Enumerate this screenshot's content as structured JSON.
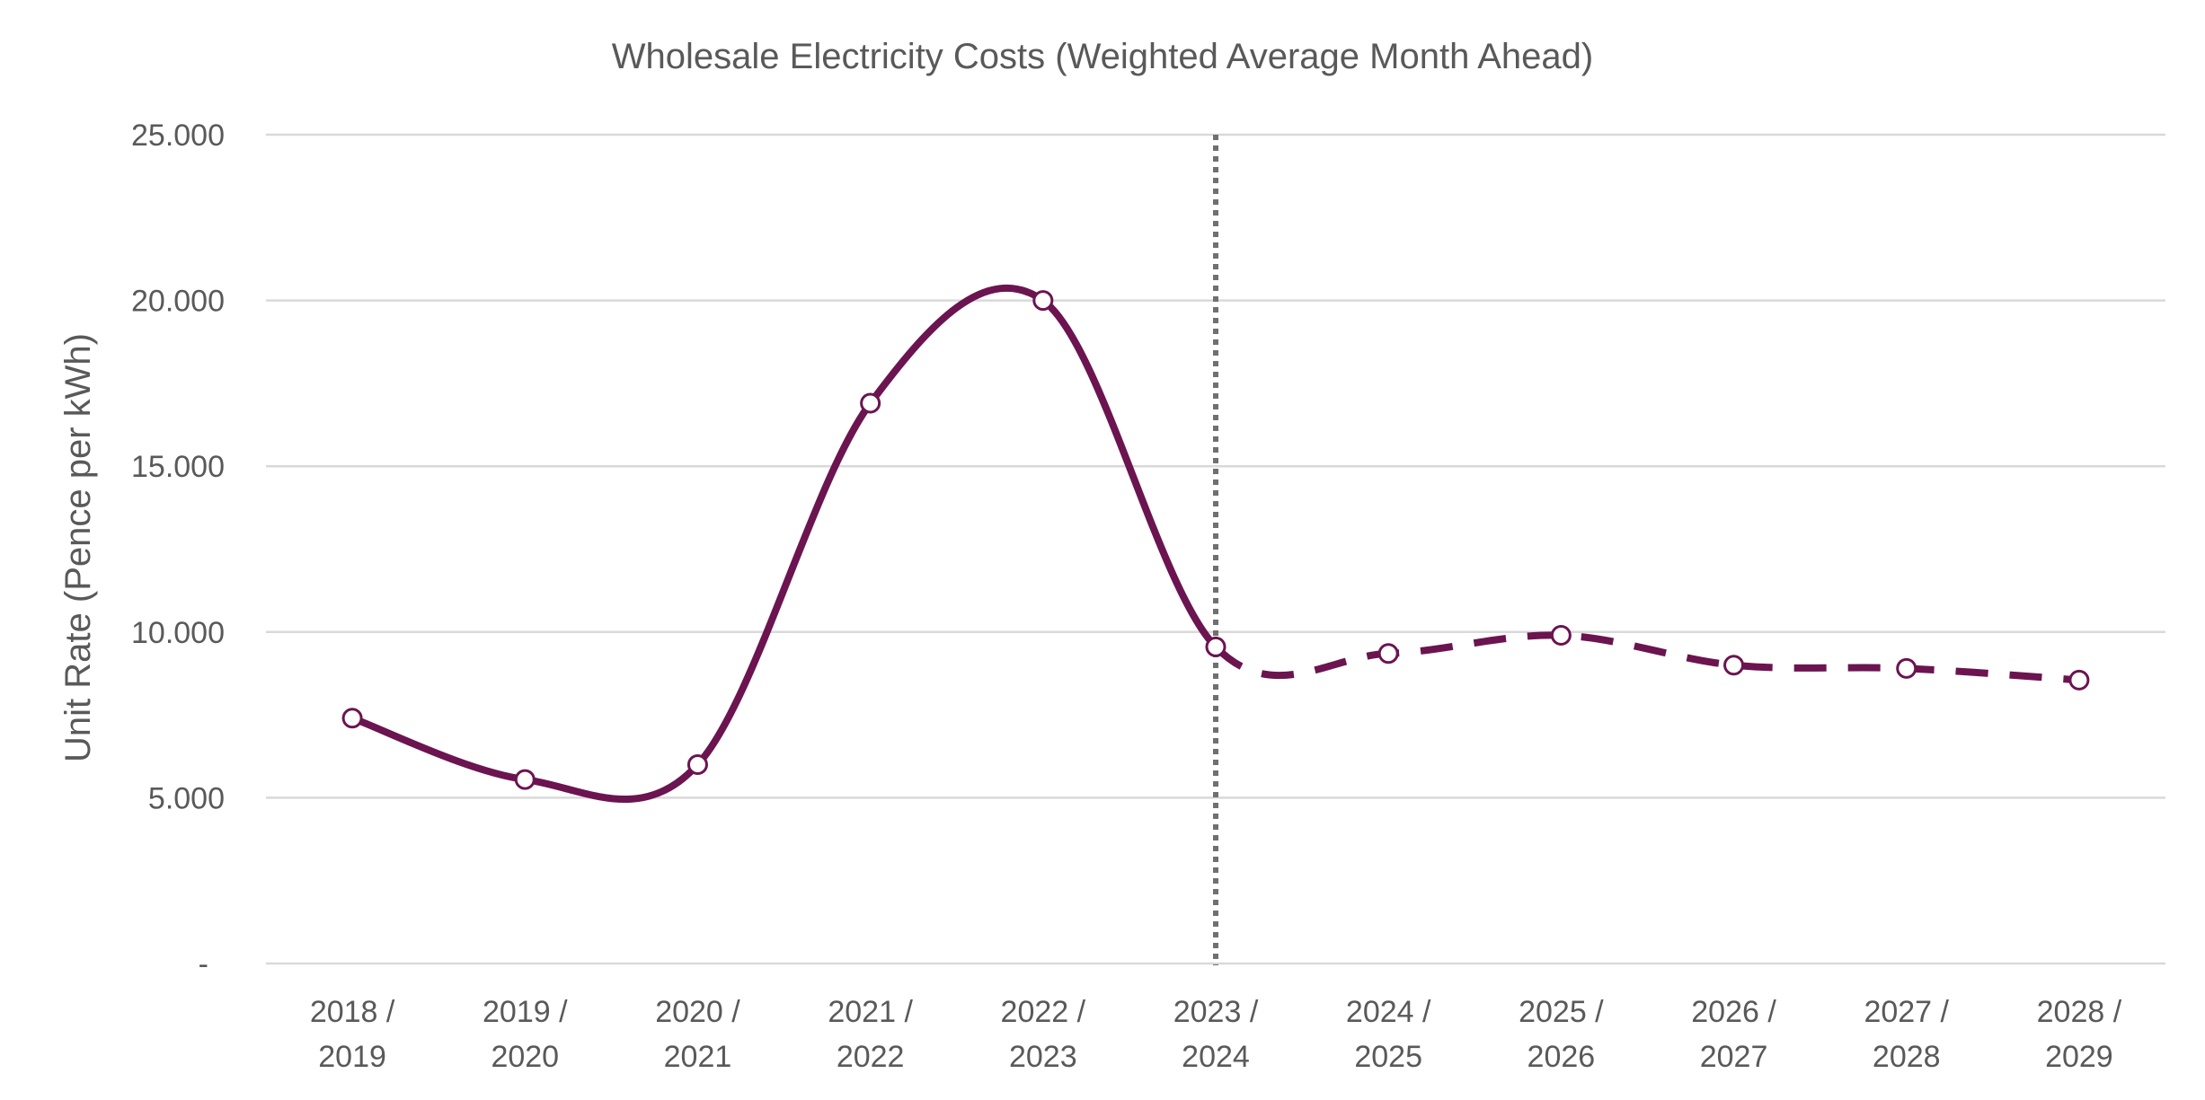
{
  "chart_data": {
    "type": "line",
    "title": "Wholesale Electricity Costs (Weighted Average Month Ahead)",
    "xlabel": "",
    "ylabel": "Unit Rate (Pence per kWh)",
    "ylim": [
      0,
      25
    ],
    "yticks": [
      0,
      5,
      10,
      15,
      20,
      25
    ],
    "ytick_labels": [
      "-",
      "5.000",
      "10.000",
      "15.000",
      "20.000",
      "25.000"
    ],
    "categories": [
      [
        "2018 /",
        "2019"
      ],
      [
        "2019 /",
        "2020"
      ],
      [
        "2020 /",
        "2021"
      ],
      [
        "2021 /",
        "2022"
      ],
      [
        "2022 /",
        "2023"
      ],
      [
        "2023 /",
        "2024"
      ],
      [
        "2024 /",
        "2025"
      ],
      [
        "2025 /",
        "2026"
      ],
      [
        "2026 /",
        "2027"
      ],
      [
        "2027 /",
        "2028"
      ],
      [
        "2028 /",
        "2029"
      ]
    ],
    "series": [
      {
        "values": [
          7.4,
          5.55,
          6.0,
          16.9,
          20.0,
          9.55,
          9.35,
          9.9,
          9.0,
          8.9,
          8.55
        ],
        "color": "#6b1450",
        "historical_through_index": 5,
        "line_style_historical": "solid",
        "line_style_forecast": "dashed",
        "smoothed": true,
        "markers": "hollow-circle"
      }
    ],
    "divider": {
      "category_index": 5,
      "style": "dotted",
      "color": "#707070"
    },
    "grid": true,
    "legend": "none"
  }
}
